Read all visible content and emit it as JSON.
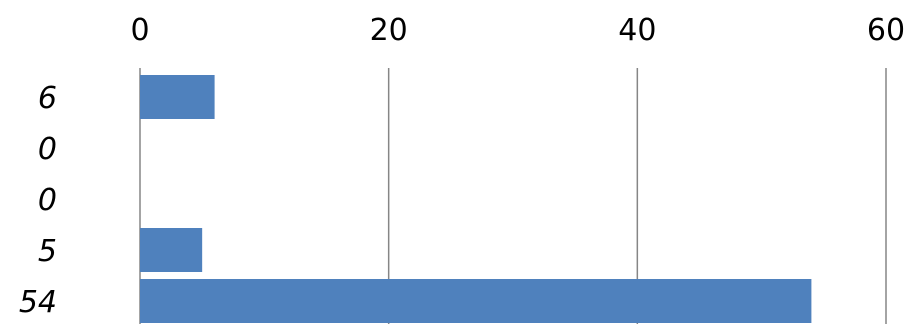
{
  "chart_data": {
    "type": "bar",
    "orientation": "horizontal",
    "categories": [
      "6",
      "0",
      "0",
      "5",
      "54"
    ],
    "values": [
      6,
      0,
      0,
      5,
      54
    ],
    "xlim": [
      0,
      60
    ],
    "x_ticks": [
      0,
      20,
      40,
      60
    ],
    "x_tick_labels": [
      "0",
      "20",
      "40",
      "60"
    ],
    "x_axis_position": "top",
    "grid": true,
    "legend": "none",
    "title": "",
    "xlabel": "",
    "ylabel": "",
    "bar_color": "#4F81BD",
    "grid_color": "#868686"
  }
}
